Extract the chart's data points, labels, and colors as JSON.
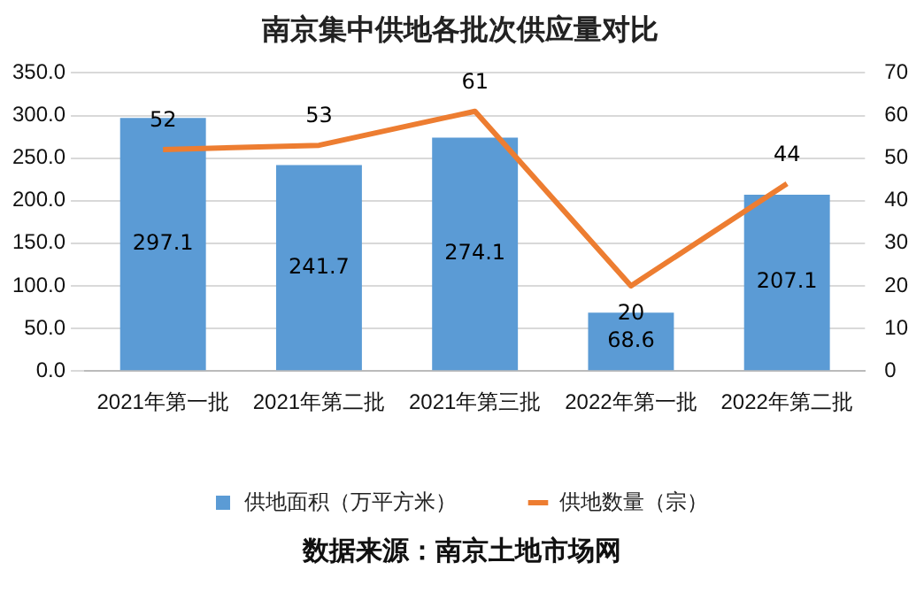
{
  "chart_data": {
    "type": "bar",
    "title": "南京集中供地各批次供应量对比",
    "categories": [
      "2021年第一批",
      "2021年第二批",
      "2021年第三批",
      "2022年第一批",
      "2022年第二批"
    ],
    "series": [
      {
        "name": "供地面积（万平方米）",
        "color": "#5b9bd5",
        "values": [
          297.1,
          241.7,
          274.1,
          68.6,
          207.1
        ]
      },
      {
        "name": "供地数量（宗）",
        "type": "line",
        "axis": "y2",
        "color": "#ed7d31",
        "values": [
          52,
          53,
          61,
          20,
          44
        ]
      }
    ],
    "ylim": [
      0,
      350
    ],
    "yticks": [
      {
        "value": 0,
        "label": "0.0"
      },
      {
        "value": 50,
        "label": "50.0"
      },
      {
        "value": 100,
        "label": "100.0"
      },
      {
        "value": 150,
        "label": "150.0"
      },
      {
        "value": 200,
        "label": "200.0"
      },
      {
        "value": 250,
        "label": "250.0"
      },
      {
        "value": 300,
        "label": "300.0"
      },
      {
        "value": 350,
        "label": "350.0"
      }
    ],
    "y2lim": [
      0,
      70
    ],
    "y2ticks": [
      0,
      10,
      20,
      30,
      40,
      50,
      60,
      70
    ],
    "grid": "y",
    "legend": "bottom",
    "marker": "none",
    "line_style": "solid",
    "data_labels": true,
    "annotations": [
      "数据来源：南京土地市场网"
    ]
  }
}
